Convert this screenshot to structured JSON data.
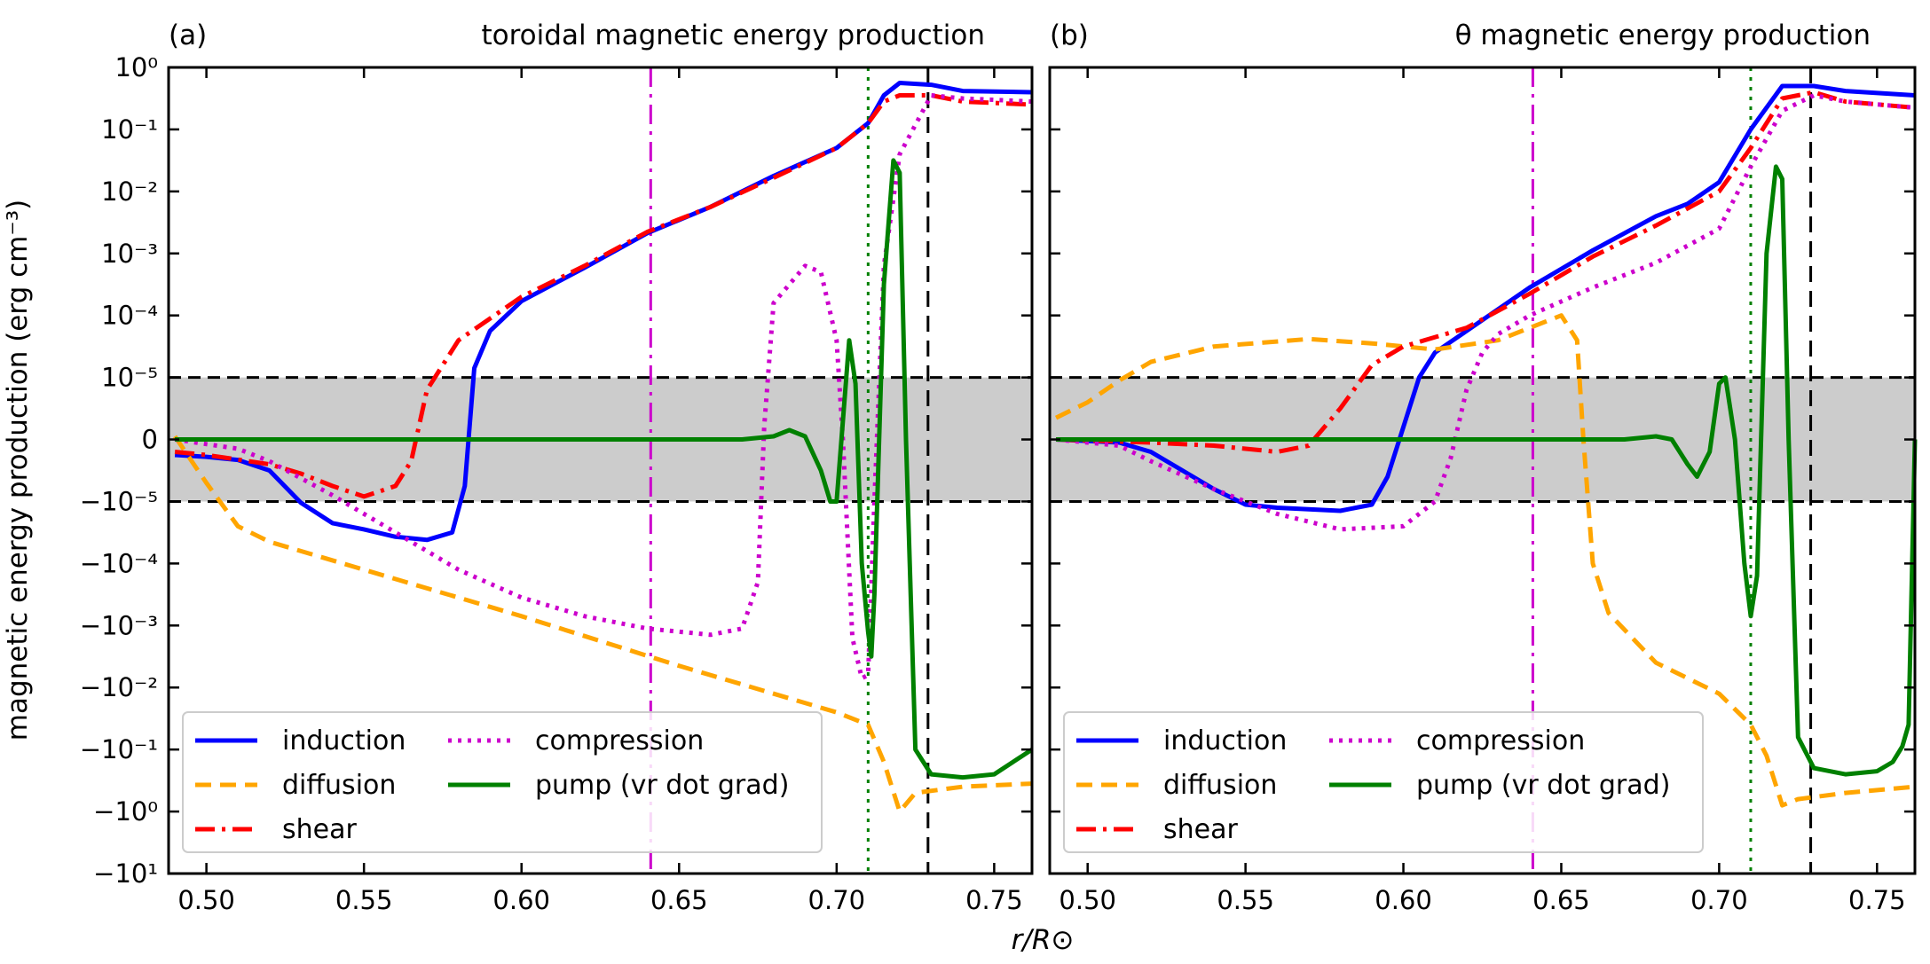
{
  "figure": {
    "ylabel": "magnetic energy production (erg cm⁻³)",
    "xlabel": "r/R⊙"
  },
  "colors": {
    "induction": "#0000ff",
    "diffusion": "#ffa500",
    "shear": "#ff0000",
    "compression": "#cc00cc",
    "pump": "#008000",
    "band": "#cccccc"
  },
  "chart_data": [
    {
      "type": "line",
      "panel_label": "(a)",
      "title": "toroidal magnetic energy production",
      "xlabel": "r/R⊙",
      "ylabel": "magnetic energy production (erg cm⁻³)",
      "xlim": [
        0.488,
        0.762
      ],
      "xticks": [
        "0.50",
        "0.55",
        "0.60",
        "0.65",
        "0.70",
        "0.75"
      ],
      "yscale": "symlog",
      "ylim_note": "y axis is symmetric-log from -10^1 to 10^0 with linear band around 0",
      "yticks_pos": [
        "10⁰",
        "10⁻¹",
        "10⁻²",
        "10⁻³",
        "10⁻⁴",
        "10⁻⁵"
      ],
      "yticks_zero": "0",
      "yticks_neg": [
        "−10⁻⁵",
        "−10⁻⁴",
        "−10⁻³",
        "−10⁻²",
        "−10⁻¹",
        "−10⁰",
        "−10¹"
      ],
      "vlines": [
        {
          "x": 0.641,
          "style": "dashdot",
          "color": "#cc00cc"
        },
        {
          "x": 0.71,
          "style": "dotted",
          "color": "#008000"
        },
        {
          "x": 0.729,
          "style": "dashed",
          "color": "#000000"
        }
      ],
      "legend_placement": "lower-left",
      "series": [
        {
          "name": "induction",
          "style": "solid",
          "color": "#0000ff",
          "points": [
            [
              0.49,
              -0.25
            ],
            [
              0.5,
              -0.28
            ],
            [
              0.51,
              -0.33
            ],
            [
              0.52,
              -0.5
            ],
            [
              0.53,
              -1.02
            ],
            [
              0.54,
              -1.35
            ],
            [
              0.55,
              -1.45
            ],
            [
              0.56,
              -1.57
            ],
            [
              0.57,
              -1.62
            ],
            [
              0.578,
              -1.5
            ],
            [
              0.582,
              -0.75
            ],
            [
              0.585,
              1.15
            ],
            [
              0.59,
              1.75
            ],
            [
              0.6,
              2.23
            ],
            [
              0.61,
              2.5
            ],
            [
              0.62,
              2.77
            ],
            [
              0.64,
              3.33
            ],
            [
              0.66,
              3.75
            ],
            [
              0.68,
              4.25
            ],
            [
              0.7,
              4.7
            ],
            [
              0.71,
              5.1
            ],
            [
              0.715,
              5.55
            ],
            [
              0.72,
              5.75
            ],
            [
              0.73,
              5.72
            ],
            [
              0.74,
              5.62
            ],
            [
              0.762,
              5.6
            ]
          ]
        },
        {
          "name": "diffusion",
          "style": "dashed",
          "color": "#ffa500",
          "points": [
            [
              0.49,
              0.05
            ],
            [
              0.5,
              -0.7
            ],
            [
              0.51,
              -1.4
            ],
            [
              0.52,
              -1.65
            ],
            [
              0.55,
              -2.1
            ],
            [
              0.6,
              -2.85
            ],
            [
              0.65,
              -3.65
            ],
            [
              0.68,
              -4.1
            ],
            [
              0.7,
              -4.4
            ],
            [
              0.71,
              -4.6
            ],
            [
              0.715,
              -5.2
            ],
            [
              0.72,
              -6.0
            ],
            [
              0.725,
              -5.7
            ],
            [
              0.74,
              -5.6
            ],
            [
              0.762,
              -5.55
            ]
          ]
        },
        {
          "name": "shear",
          "style": "dashdot",
          "color": "#ff0000",
          "points": [
            [
              0.49,
              -0.2
            ],
            [
              0.5,
              -0.25
            ],
            [
              0.52,
              -0.4
            ],
            [
              0.53,
              -0.55
            ],
            [
              0.54,
              -0.75
            ],
            [
              0.55,
              -0.92
            ],
            [
              0.56,
              -0.75
            ],
            [
              0.565,
              -0.35
            ],
            [
              0.57,
              0.8
            ],
            [
              0.58,
              1.6
            ],
            [
              0.6,
              2.3
            ],
            [
              0.62,
              2.8
            ],
            [
              0.64,
              3.35
            ],
            [
              0.66,
              3.75
            ],
            [
              0.68,
              4.22
            ],
            [
              0.7,
              4.7
            ],
            [
              0.71,
              5.1
            ],
            [
              0.715,
              5.45
            ],
            [
              0.72,
              5.55
            ],
            [
              0.73,
              5.55
            ],
            [
              0.74,
              5.45
            ],
            [
              0.762,
              5.4
            ]
          ]
        },
        {
          "name": "compression",
          "style": "dotted",
          "color": "#cc00cc",
          "points": [
            [
              0.49,
              0.0
            ],
            [
              0.51,
              -0.15
            ],
            [
              0.52,
              -0.35
            ],
            [
              0.54,
              -0.9
            ],
            [
              0.56,
              -1.5
            ],
            [
              0.58,
              -2.1
            ],
            [
              0.6,
              -2.55
            ],
            [
              0.62,
              -2.85
            ],
            [
              0.64,
              -3.05
            ],
            [
              0.66,
              -3.15
            ],
            [
              0.67,
              -3.05
            ],
            [
              0.675,
              -2.3
            ],
            [
              0.677,
              0.2
            ],
            [
              0.68,
              2.2
            ],
            [
              0.69,
              2.8
            ],
            [
              0.695,
              2.7
            ],
            [
              0.7,
              1.6
            ],
            [
              0.702,
              0.0
            ],
            [
              0.705,
              -3.2
            ],
            [
              0.708,
              -3.85
            ],
            [
              0.71,
              -3.8
            ],
            [
              0.712,
              -1.0
            ],
            [
              0.715,
              2.8
            ],
            [
              0.72,
              4.6
            ],
            [
              0.73,
              5.55
            ],
            [
              0.74,
              5.5
            ],
            [
              0.762,
              5.45
            ]
          ]
        },
        {
          "name": "pump (vr dot grad)",
          "style": "solid",
          "color": "#008000",
          "points": [
            [
              0.49,
              0.0
            ],
            [
              0.55,
              0.0
            ],
            [
              0.6,
              0.0
            ],
            [
              0.65,
              0.0
            ],
            [
              0.67,
              0.0
            ],
            [
              0.68,
              0.05
            ],
            [
              0.685,
              0.15
            ],
            [
              0.69,
              0.05
            ],
            [
              0.695,
              -0.5
            ],
            [
              0.698,
              -1.0
            ],
            [
              0.7,
              -1.0
            ],
            [
              0.702,
              0.3
            ],
            [
              0.704,
              1.6
            ],
            [
              0.706,
              0.9
            ],
            [
              0.708,
              -2.0
            ],
            [
              0.71,
              -3.1
            ],
            [
              0.711,
              -3.5
            ],
            [
              0.712,
              -2.5
            ],
            [
              0.715,
              2.5
            ],
            [
              0.718,
              4.5
            ],
            [
              0.72,
              4.3
            ],
            [
              0.722,
              0.0
            ],
            [
              0.725,
              -5.0
            ],
            [
              0.73,
              -5.4
            ],
            [
              0.74,
              -5.45
            ],
            [
              0.75,
              -5.4
            ],
            [
              0.762,
              -5.0
            ]
          ]
        }
      ]
    },
    {
      "type": "line",
      "panel_label": "(b)",
      "title": "θ magnetic energy production",
      "xlabel": "r/R⊙",
      "xlim": [
        0.488,
        0.762
      ],
      "xticks": [
        "0.50",
        "0.55",
        "0.60",
        "0.65",
        "0.70",
        "0.75"
      ],
      "yscale": "symlog",
      "vlines": [
        {
          "x": 0.641,
          "style": "dashdot",
          "color": "#cc00cc"
        },
        {
          "x": 0.71,
          "style": "dotted",
          "color": "#008000"
        },
        {
          "x": 0.729,
          "style": "dashed",
          "color": "#000000"
        }
      ],
      "legend_placement": "lower-left",
      "series": [
        {
          "name": "induction",
          "style": "solid",
          "color": "#0000ff",
          "points": [
            [
              0.49,
              0.0
            ],
            [
              0.51,
              -0.05
            ],
            [
              0.52,
              -0.2
            ],
            [
              0.53,
              -0.5
            ],
            [
              0.54,
              -0.8
            ],
            [
              0.55,
              -1.05
            ],
            [
              0.56,
              -1.1
            ],
            [
              0.58,
              -1.15
            ],
            [
              0.59,
              -1.05
            ],
            [
              0.595,
              -0.6
            ],
            [
              0.6,
              0.2
            ],
            [
              0.605,
              1.0
            ],
            [
              0.61,
              1.4
            ],
            [
              0.62,
              1.75
            ],
            [
              0.64,
              2.45
            ],
            [
              0.66,
              3.05
            ],
            [
              0.68,
              3.6
            ],
            [
              0.69,
              3.8
            ],
            [
              0.7,
              4.15
            ],
            [
              0.71,
              5.0
            ],
            [
              0.72,
              5.7
            ],
            [
              0.73,
              5.7
            ],
            [
              0.74,
              5.62
            ],
            [
              0.762,
              5.55
            ]
          ]
        },
        {
          "name": "diffusion",
          "style": "dashed",
          "color": "#ffa500",
          "points": [
            [
              0.49,
              0.35
            ],
            [
              0.5,
              0.6
            ],
            [
              0.51,
              0.95
            ],
            [
              0.52,
              1.25
            ],
            [
              0.54,
              1.5
            ],
            [
              0.57,
              1.62
            ],
            [
              0.59,
              1.55
            ],
            [
              0.61,
              1.45
            ],
            [
              0.63,
              1.6
            ],
            [
              0.65,
              2.0
            ],
            [
              0.655,
              1.6
            ],
            [
              0.657,
              0.0
            ],
            [
              0.66,
              -2.0
            ],
            [
              0.665,
              -2.8
            ],
            [
              0.68,
              -3.6
            ],
            [
              0.7,
              -4.1
            ],
            [
              0.71,
              -4.6
            ],
            [
              0.715,
              -5.1
            ],
            [
              0.72,
              -5.9
            ],
            [
              0.725,
              -5.8
            ],
            [
              0.74,
              -5.7
            ],
            [
              0.762,
              -5.6
            ]
          ]
        },
        {
          "name": "shear",
          "style": "dashdot",
          "color": "#ff0000",
          "points": [
            [
              0.49,
              0.0
            ],
            [
              0.52,
              -0.05
            ],
            [
              0.54,
              -0.1
            ],
            [
              0.56,
              -0.2
            ],
            [
              0.57,
              -0.1
            ],
            [
              0.58,
              0.5
            ],
            [
              0.59,
              1.2
            ],
            [
              0.6,
              1.5
            ],
            [
              0.62,
              1.8
            ],
            [
              0.64,
              2.35
            ],
            [
              0.66,
              2.95
            ],
            [
              0.68,
              3.45
            ],
            [
              0.7,
              4.0
            ],
            [
              0.71,
              4.7
            ],
            [
              0.72,
              5.5
            ],
            [
              0.73,
              5.6
            ],
            [
              0.74,
              5.45
            ],
            [
              0.762,
              5.35
            ]
          ]
        },
        {
          "name": "compression",
          "style": "dotted",
          "color": "#cc00cc",
          "points": [
            [
              0.49,
              0.0
            ],
            [
              0.51,
              -0.1
            ],
            [
              0.52,
              -0.35
            ],
            [
              0.54,
              -0.8
            ],
            [
              0.56,
              -1.2
            ],
            [
              0.58,
              -1.45
            ],
            [
              0.6,
              -1.4
            ],
            [
              0.61,
              -1.0
            ],
            [
              0.615,
              -0.3
            ],
            [
              0.62,
              0.8
            ],
            [
              0.625,
              1.4
            ],
            [
              0.63,
              1.7
            ],
            [
              0.64,
              2.0
            ],
            [
              0.66,
              2.45
            ],
            [
              0.68,
              2.85
            ],
            [
              0.7,
              3.4
            ],
            [
              0.71,
              4.4
            ],
            [
              0.72,
              5.3
            ],
            [
              0.73,
              5.55
            ],
            [
              0.74,
              5.45
            ],
            [
              0.762,
              5.35
            ]
          ]
        },
        {
          "name": "pump (vr dot grad)",
          "style": "solid",
          "color": "#008000",
          "points": [
            [
              0.49,
              0.0
            ],
            [
              0.55,
              0.0
            ],
            [
              0.6,
              0.0
            ],
            [
              0.65,
              0.0
            ],
            [
              0.67,
              0.0
            ],
            [
              0.68,
              0.05
            ],
            [
              0.685,
              0.0
            ],
            [
              0.69,
              -0.4
            ],
            [
              0.693,
              -0.6
            ],
            [
              0.697,
              -0.2
            ],
            [
              0.7,
              0.9
            ],
            [
              0.702,
              1.0
            ],
            [
              0.705,
              0.0
            ],
            [
              0.708,
              -2.0
            ],
            [
              0.71,
              -2.85
            ],
            [
              0.712,
              -2.2
            ],
            [
              0.715,
              3.0
            ],
            [
              0.718,
              4.4
            ],
            [
              0.72,
              4.2
            ],
            [
              0.722,
              0.0
            ],
            [
              0.725,
              -4.8
            ],
            [
              0.73,
              -5.3
            ],
            [
              0.74,
              -5.4
            ],
            [
              0.75,
              -5.35
            ],
            [
              0.755,
              -5.2
            ],
            [
              0.758,
              -4.95
            ],
            [
              0.76,
              -4.6
            ],
            [
              0.762,
              0.0
            ]
          ]
        }
      ]
    }
  ]
}
